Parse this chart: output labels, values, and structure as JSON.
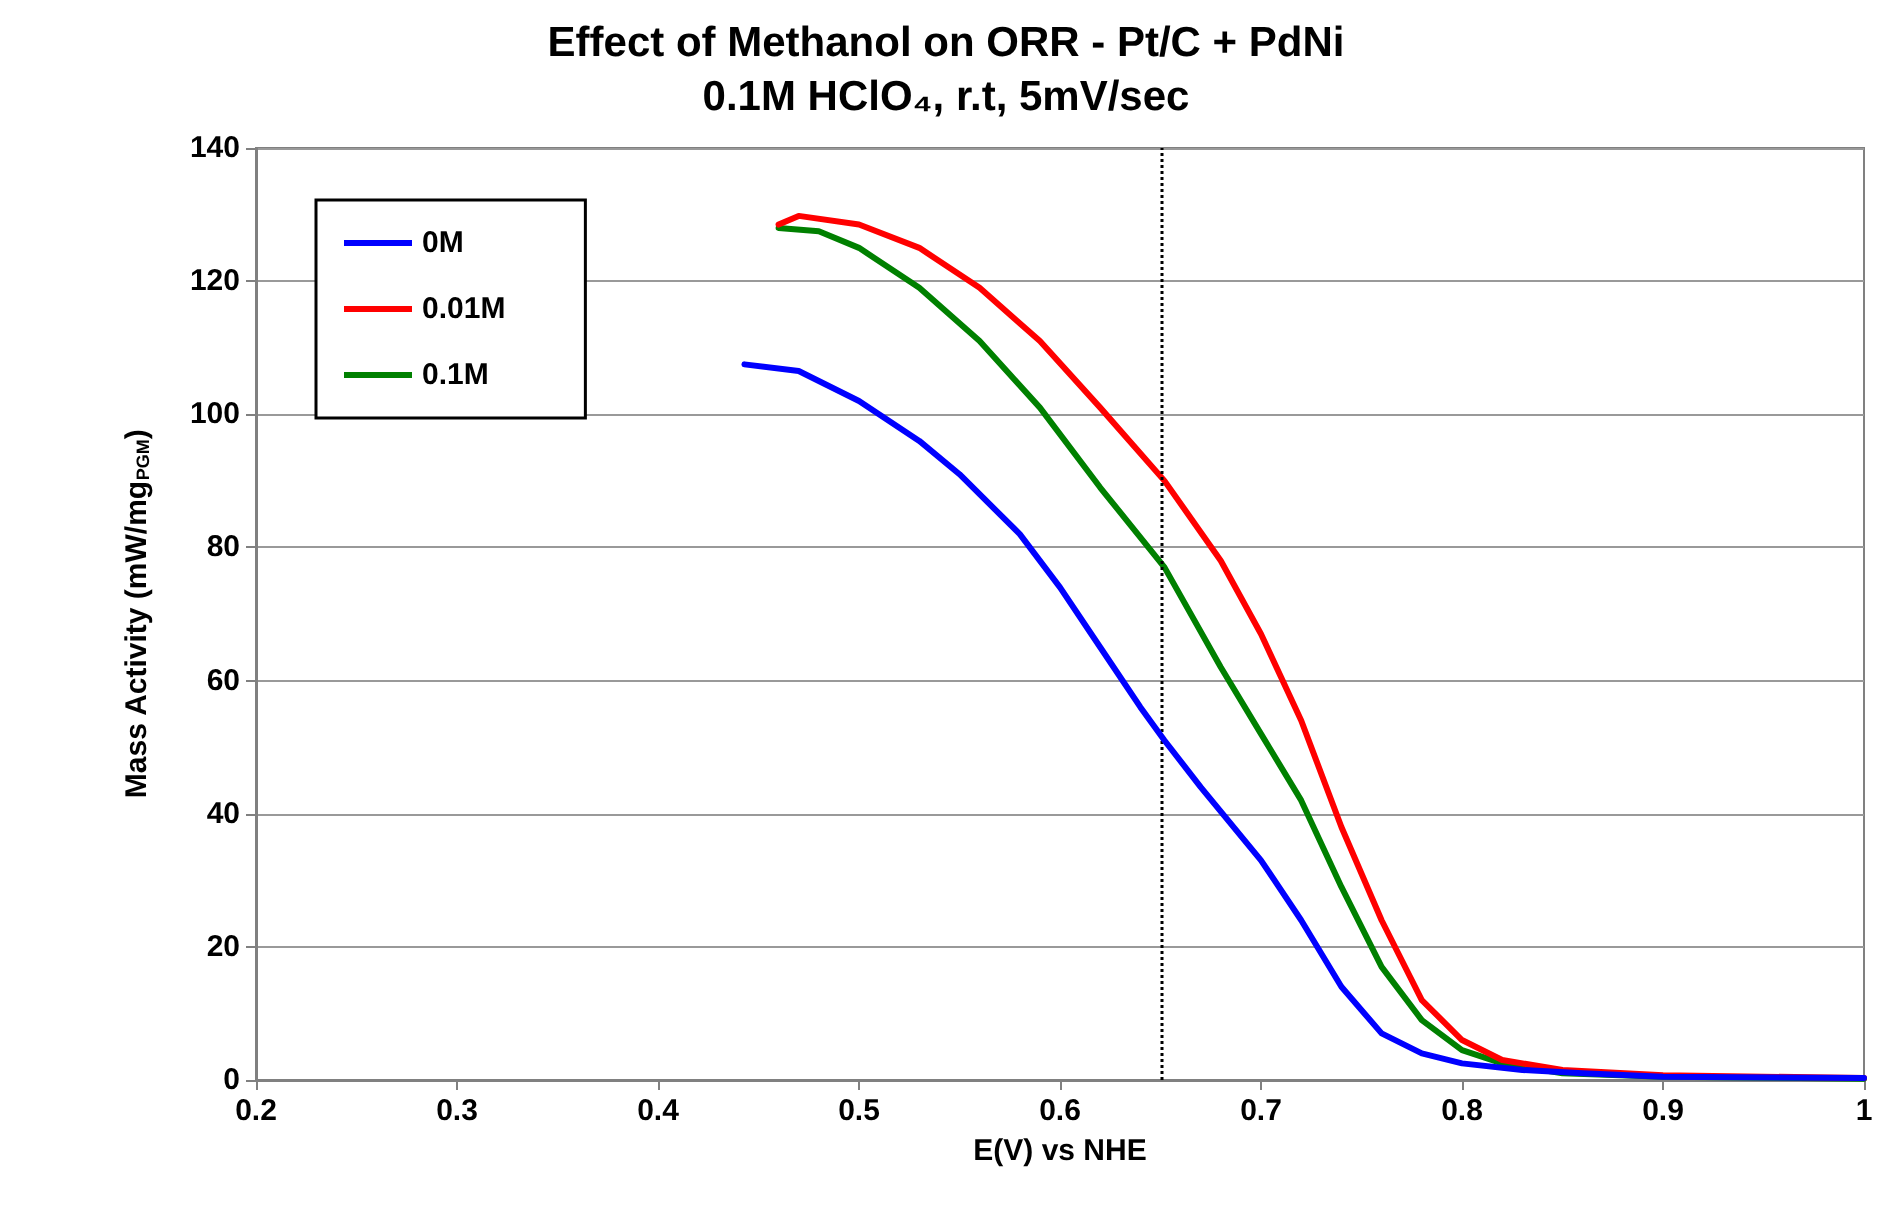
{
  "chart_data": {
    "type": "line",
    "title": "Effect of Methanol on ORR - Pt/C + PdNi",
    "subtitle": "0.1M HClO₄, r.t, 5mV/sec",
    "xlabel": "E(V) vs NHE",
    "ylabel": "Mass Activity (mW/mg$_{PGM}$)",
    "xlim": [
      0.2,
      1
    ],
    "xticks": [
      0.2,
      0.3,
      0.4,
      0.5,
      0.6,
      0.7,
      0.8,
      0.9,
      {
        "value": 1,
        "label": "1"
      }
    ],
    "ylim": [
      0,
      140
    ],
    "yticks": [
      0,
      20,
      40,
      60,
      80,
      100,
      120,
      140
    ],
    "grid": "y",
    "legend": "top left",
    "marker": "none",
    "line_style": "solid",
    "ref_lines": [
      {
        "axis": "x",
        "value": 0.652,
        "label": null,
        "color": "#000000",
        "line_style": "dotted"
      }
    ],
    "series": [
      {
        "name": "0M",
        "color": "#0000ff",
        "x": [
          0.443,
          0.47,
          0.5,
          0.53,
          0.55,
          0.58,
          0.6,
          0.62,
          0.64,
          0.652,
          0.67,
          0.7,
          0.72,
          0.74,
          0.76,
          0.78,
          0.8,
          0.83,
          0.86,
          0.9,
          1
        ],
        "values": [
          107.5,
          106.5,
          102,
          96,
          91,
          82,
          74,
          65,
          56,
          51,
          44,
          33,
          24,
          14,
          7,
          4,
          2.5,
          1.5,
          1,
          0.5,
          0.3
        ]
      },
      {
        "name": "0.01M",
        "color": "#ff0000",
        "x": [
          0.46,
          0.47,
          0.5,
          0.53,
          0.56,
          0.59,
          0.62,
          0.652,
          0.68,
          0.7,
          0.72,
          0.74,
          0.76,
          0.78,
          0.8,
          0.82,
          0.85,
          0.9,
          1
        ],
        "values": [
          128.5,
          129.8,
          128.5,
          125,
          119,
          111,
          101,
          90,
          78,
          67,
          54,
          38,
          24,
          12,
          6,
          3,
          1.5,
          0.7,
          0.3
        ]
      },
      {
        "name": "0.1M",
        "color": "#008000",
        "x": [
          0.46,
          0.48,
          0.5,
          0.53,
          0.56,
          0.59,
          0.62,
          0.652,
          0.68,
          0.7,
          0.72,
          0.74,
          0.76,
          0.78,
          0.8,
          0.82,
          0.85,
          0.9,
          1
        ],
        "values": [
          128,
          127.5,
          125,
          119,
          111,
          101,
          89,
          77,
          62,
          52,
          42,
          29,
          17,
          9,
          4.5,
          2.5,
          1,
          0.5,
          0.2
        ]
      }
    ]
  }
}
